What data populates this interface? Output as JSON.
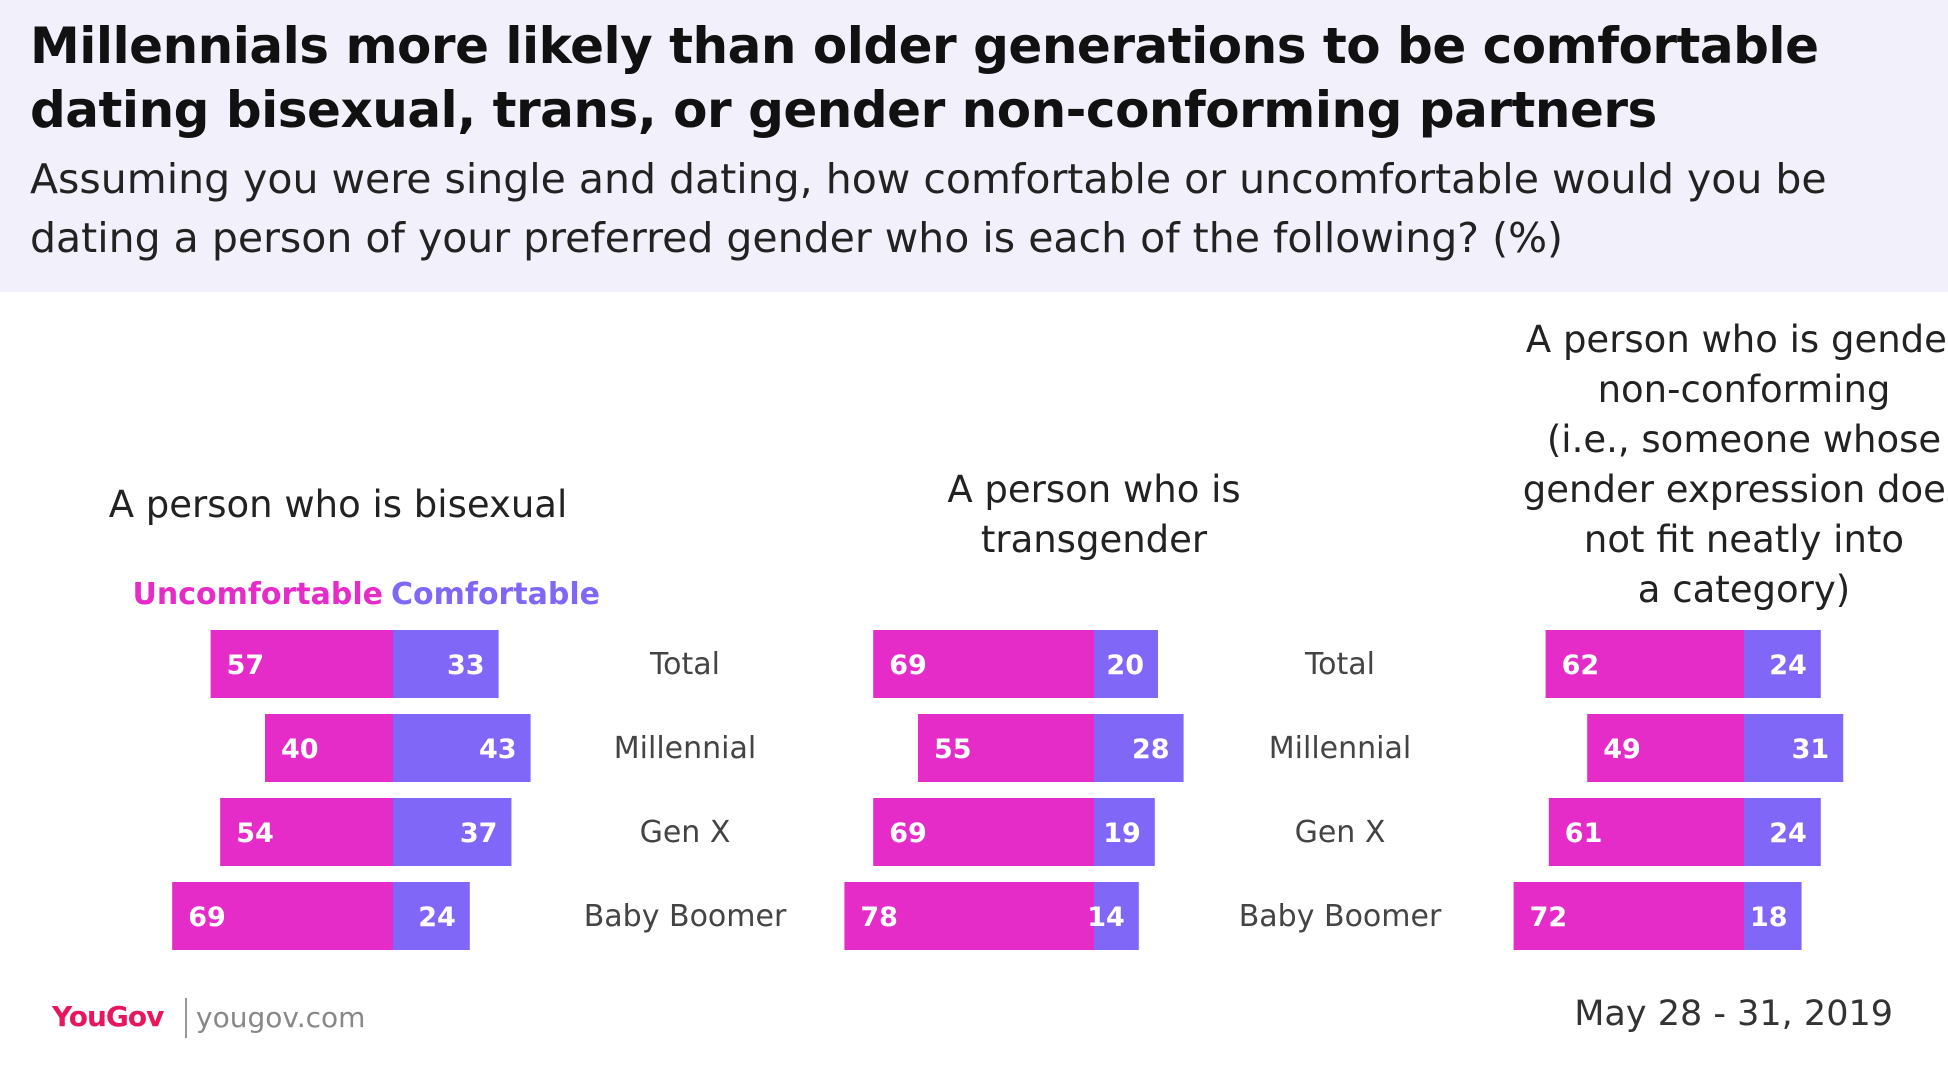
{
  "title": "Millennials more likely than older generations to be comfortable dating bisexual, trans, or gender non-conforming partners",
  "subtitle": "Assuming you were single and dating, how comfortable or uncomfortable would you be dating a person of your preferred gender who is each of the following? (%)",
  "colors": {
    "uncomfortable": "#e52bc8",
    "comfortable": "#8067f8",
    "header_bg": "#f2f1fb"
  },
  "footer": {
    "logo_you": "You",
    "logo_gov": "Gov",
    "url": "yougov.com",
    "date": "May 28 - 31, 2019"
  },
  "chart_data": {
    "type": "bar",
    "legend": {
      "uncomfortable": "Uncomfortable",
      "comfortable": "Comfortable"
    },
    "categories": [
      "Total",
      "Millennial",
      "Gen X",
      "Baby Boomer"
    ],
    "panels": [
      {
        "title": [
          "A person who is bisexual"
        ],
        "series": [
          {
            "name": "Uncomfortable",
            "values": [
              57,
              40,
              54,
              69
            ]
          },
          {
            "name": "Comfortable",
            "values": [
              33,
              43,
              37,
              24
            ]
          }
        ]
      },
      {
        "title": [
          "A person who is",
          "transgender"
        ],
        "series": [
          {
            "name": "Uncomfortable",
            "values": [
              69,
              55,
              69,
              78
            ]
          },
          {
            "name": "Comfortable",
            "values": [
              20,
              28,
              19,
              14
            ]
          }
        ]
      },
      {
        "title": [
          "A person who is gender",
          "non-conforming",
          "(i.e., someone whose",
          "gender expression does",
          "not fit neatly into",
          "a category)"
        ],
        "series": [
          {
            "name": "Uncomfortable",
            "values": [
              62,
              49,
              61,
              72
            ]
          },
          {
            "name": "Comfortable",
            "values": [
              24,
              31,
              24,
              18
            ]
          }
        ]
      }
    ]
  }
}
